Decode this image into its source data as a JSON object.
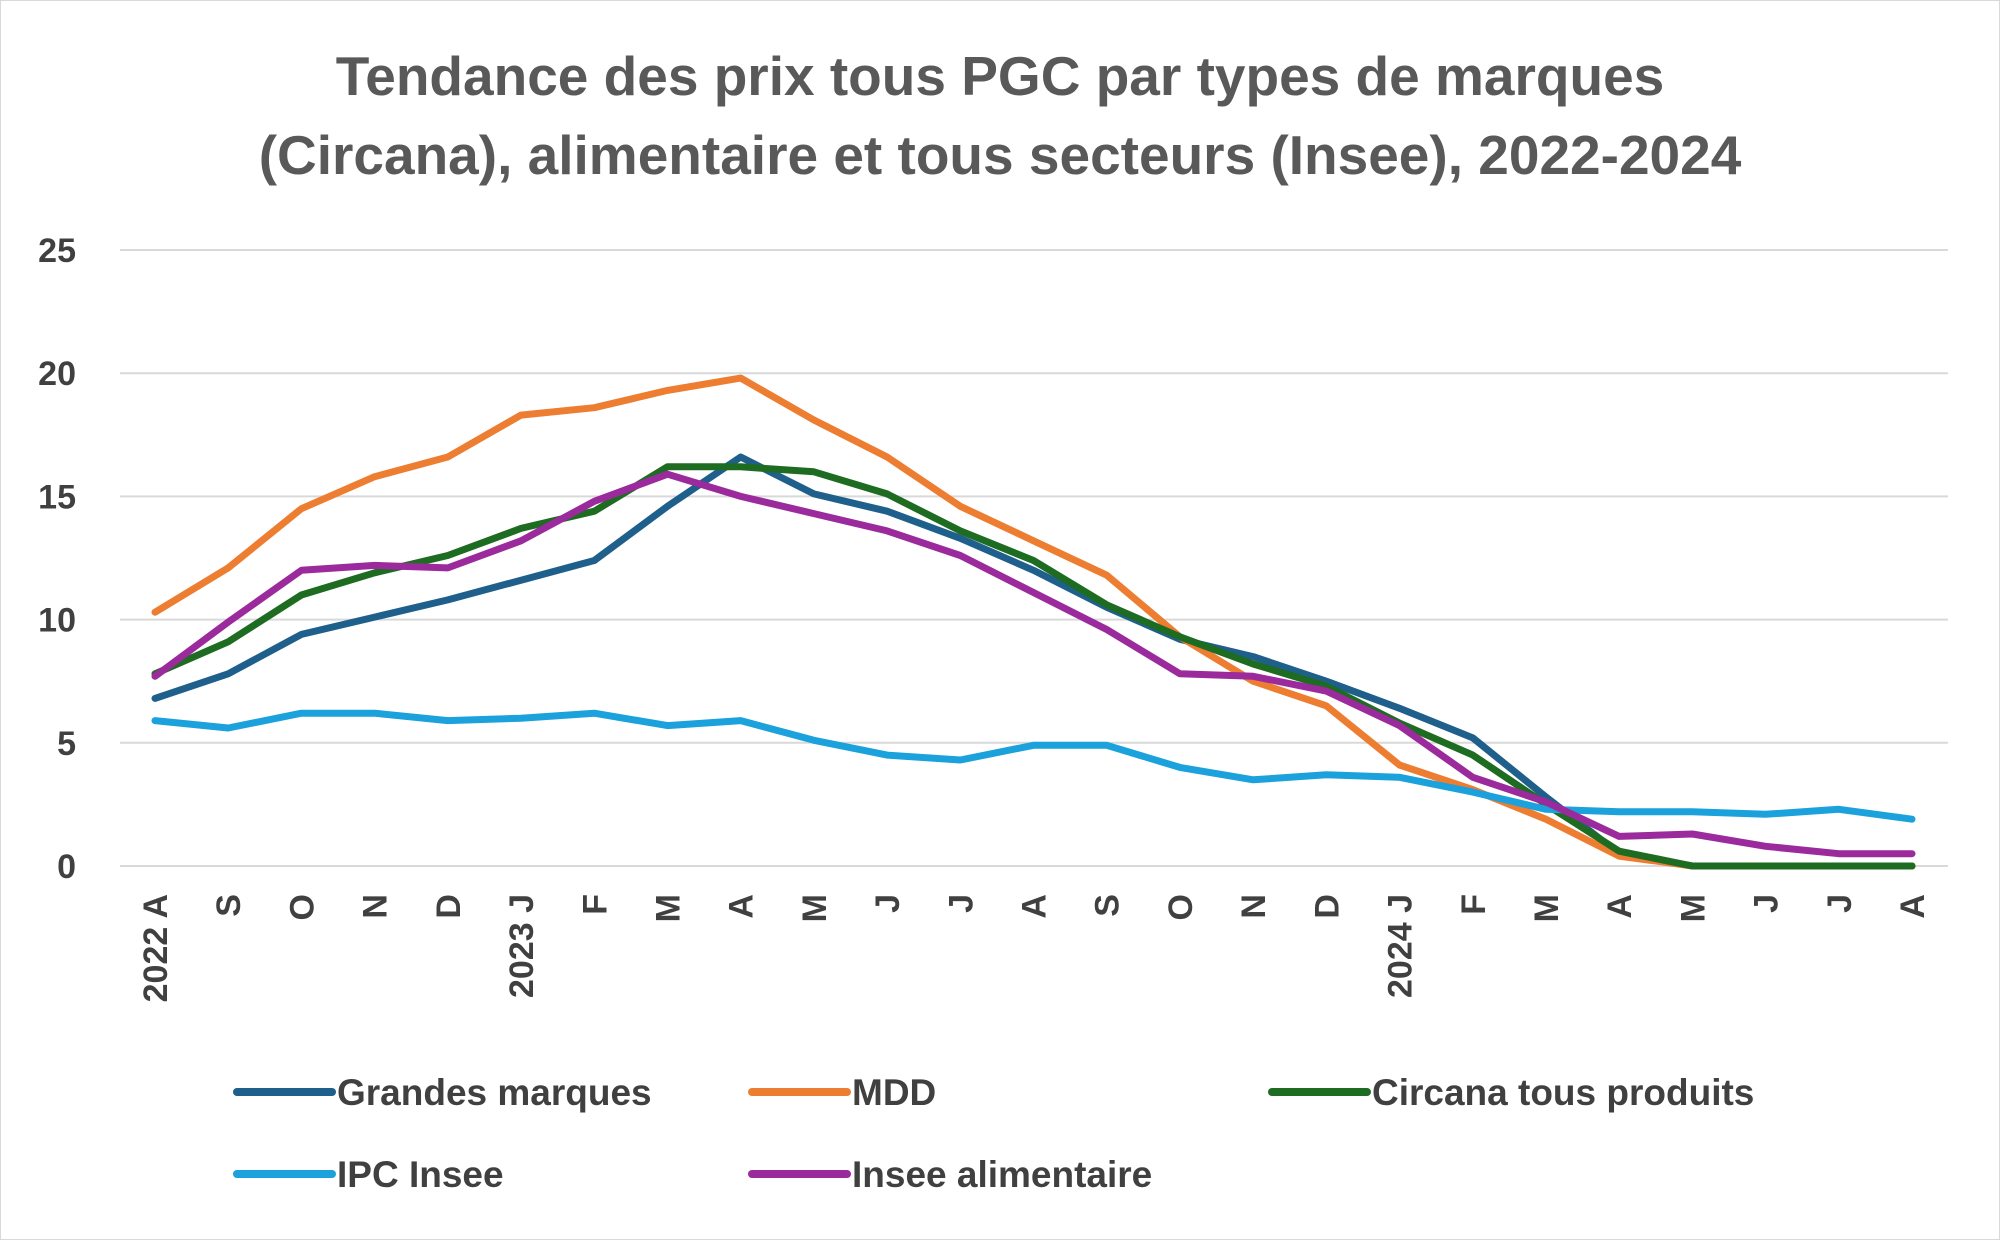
{
  "chart_data": {
    "type": "line",
    "title_lines": [
      "Tendance des prix tous PGC par types de marques",
      "(Circana), alimentaire et tous secteurs (Insee), 2022-2024"
    ],
    "xlabel": "",
    "ylabel": "",
    "ylim": [
      0,
      25
    ],
    "yticks": [
      "0",
      "5",
      "10",
      "15",
      "20",
      "25"
    ],
    "categories": [
      "2022 A",
      "S",
      "O",
      "N",
      "D",
      "2023 J",
      "F",
      "M",
      "A",
      "M",
      "J",
      "J",
      "A",
      "S",
      "O",
      "N",
      "D",
      "2024 J",
      "F",
      "M",
      "A",
      "M",
      "J",
      "J",
      "A"
    ],
    "grid": true,
    "legend_position": "bottom",
    "series": [
      {
        "name": "Grandes marques",
        "color": "#1f5f8b",
        "values": [
          6.8,
          7.8,
          9.4,
          10.1,
          10.8,
          11.6,
          12.4,
          14.6,
          16.6,
          15.1,
          14.4,
          13.3,
          12.0,
          10.5,
          9.2,
          8.5,
          7.5,
          6.4,
          5.2,
          2.8,
          0.5,
          0.0,
          0.0,
          0.0,
          0.0
        ]
      },
      {
        "name": "MDD",
        "color": "#ed7d31",
        "values": [
          10.3,
          12.1,
          14.5,
          15.8,
          16.6,
          18.3,
          18.6,
          19.3,
          19.8,
          18.1,
          16.6,
          14.6,
          13.2,
          11.8,
          9.3,
          7.5,
          6.5,
          4.1,
          3.1,
          1.9,
          0.4,
          0.0,
          0.0,
          0.0,
          0.0
        ]
      },
      {
        "name": "Circana tous produits",
        "color": "#1e6b22",
        "values": [
          7.8,
          9.1,
          11.0,
          11.9,
          12.6,
          13.7,
          14.4,
          16.2,
          16.2,
          16.0,
          15.1,
          13.6,
          12.4,
          10.6,
          9.3,
          8.2,
          7.3,
          5.8,
          4.5,
          2.5,
          0.6,
          0.0,
          0.0,
          0.0,
          0.0
        ]
      },
      {
        "name": "IPC Insee",
        "color": "#1ba1dc",
        "values": [
          5.9,
          5.6,
          6.2,
          6.2,
          5.9,
          6.0,
          6.2,
          5.7,
          5.9,
          5.1,
          4.5,
          4.3,
          4.9,
          4.9,
          4.0,
          3.5,
          3.7,
          3.6,
          3.0,
          2.3,
          2.2,
          2.2,
          2.1,
          2.3,
          1.9
        ]
      },
      {
        "name": "Insee alimentaire",
        "color": "#9b2a9c",
        "values": [
          7.7,
          9.9,
          12.0,
          12.2,
          12.1,
          13.2,
          14.8,
          15.9,
          15.0,
          14.3,
          13.6,
          12.6,
          11.1,
          9.6,
          7.8,
          7.7,
          7.1,
          5.7,
          3.6,
          2.6,
          1.2,
          1.3,
          0.8,
          0.5,
          0.5
        ]
      }
    ]
  }
}
